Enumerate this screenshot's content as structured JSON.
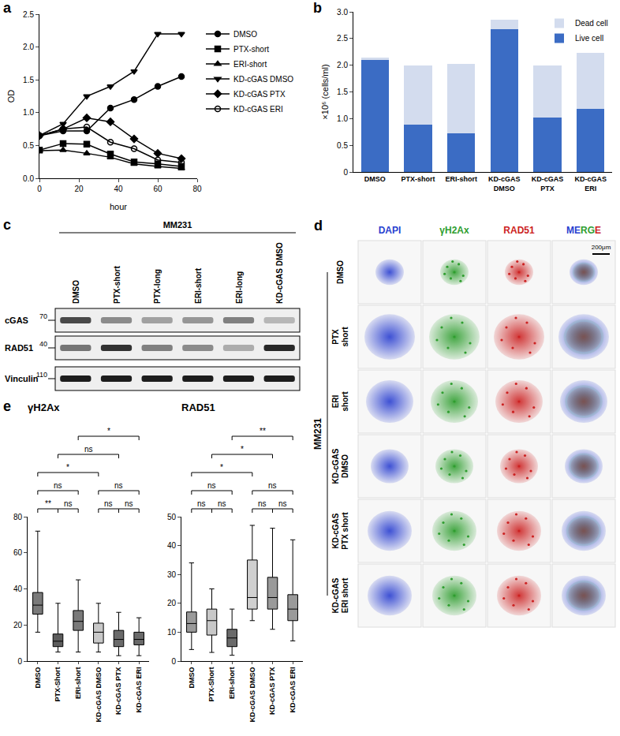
{
  "chart_data": [
    {
      "panel": "a",
      "type": "line",
      "xlabel": "hour",
      "ylabel": "OD",
      "x": [
        0,
        12,
        24,
        36,
        48,
        60,
        72
      ],
      "series": [
        {
          "name": "DMSO",
          "color": "#000000",
          "marker": "circle",
          "values": [
            0.65,
            0.72,
            0.72,
            1.07,
            1.2,
            1.4,
            1.55
          ]
        },
        {
          "name": "PTX-short",
          "color": "#000000",
          "marker": "square",
          "values": [
            0.43,
            0.53,
            0.52,
            0.37,
            0.25,
            0.22,
            0.18
          ]
        },
        {
          "name": "ERI-short",
          "color": "#000000",
          "marker": "triangle-up",
          "values": [
            0.42,
            0.43,
            0.38,
            0.32,
            0.22,
            0.18,
            0.15
          ]
        },
        {
          "name": "KD-cGAS DMSO",
          "color": "#000000",
          "marker": "triangle-down",
          "values": [
            0.65,
            0.83,
            1.25,
            1.4,
            1.63,
            2.2,
            2.2
          ]
        },
        {
          "name": "KD-cGAS PTX",
          "color": "#000000",
          "marker": "diamond",
          "values": [
            0.65,
            0.75,
            0.92,
            0.86,
            0.6,
            0.38,
            0.3
          ]
        },
        {
          "name": "KD-cGAS ERI",
          "color": "#000000",
          "marker": "circle-open",
          "values": [
            0.65,
            0.75,
            0.78,
            0.55,
            0.45,
            0.28,
            0.24
          ]
        }
      ],
      "xlim": [
        0,
        80
      ],
      "xticks": [
        0,
        20,
        40,
        60,
        80
      ],
      "ylim": [
        0,
        2.5
      ],
      "yticks": [
        {
          "value": 0,
          "label": "0.0"
        },
        0.5,
        {
          "value": 1,
          "label": "1.0"
        },
        1.5,
        {
          "value": 2,
          "label": "2.0"
        },
        2.5
      ],
      "grid": false,
      "legend": "right"
    },
    {
      "panel": "b",
      "type": "bar",
      "ylabel": "×10⁶ (cells/ml)",
      "categories": [
        "DMSO",
        "PTX-short",
        "ERI-short",
        "KD-cGAS DMSO",
        "KD-cGAS PTX",
        "KD-cGAS ERI"
      ],
      "series": [
        {
          "name": "Live cell",
          "color": "#3b6cc4",
          "values": [
            2.1,
            0.88,
            0.72,
            2.68,
            1.02,
            1.18
          ]
        },
        {
          "name": "Dead cell",
          "color": "#d3dcee",
          "values": [
            0.05,
            1.12,
            1.3,
            0.17,
            0.98,
            1.05
          ]
        }
      ],
      "stacked": true,
      "ylim": [
        0,
        3
      ],
      "yticks": [
        0,
        0.5,
        {
          "value": 1,
          "label": "1.0"
        },
        1.5,
        {
          "value": 2,
          "label": "2.0"
        },
        2.5,
        {
          "value": 3,
          "label": "3.0"
        }
      ],
      "grid": false,
      "legend": "top-right"
    },
    {
      "panel": "e",
      "type": "box",
      "title": "γH2Ax",
      "categories": [
        "DMSO",
        "PTX-Short",
        "ERI-short",
        "KD-cGAS DMSO",
        "KD-cGAS PTX",
        "KD-cGAS ERI"
      ],
      "min": [
        16,
        5,
        5,
        5,
        3,
        3
      ],
      "q1": [
        26,
        8,
        17,
        10,
        8,
        9
      ],
      "median": [
        31,
        11,
        22,
        16,
        12,
        12
      ],
      "q3": [
        38,
        15,
        28,
        21,
        17,
        16
      ],
      "max": [
        72,
        32,
        45,
        32,
        27,
        24
      ],
      "colors": [
        "#7a7a7a",
        "#5c5c5c",
        "#7a7a7a",
        "#c8c8c8",
        "#6a6a6a",
        "#6a6a6a"
      ],
      "ylim": [
        0,
        80
      ],
      "yticks": [
        0,
        20,
        40,
        60,
        80
      ],
      "grid": false,
      "comparisons": [
        {
          "groups": [
            "DMSO",
            "PTX-Short"
          ],
          "label": "**"
        },
        {
          "groups": [
            "PTX-Short",
            "ERI-short"
          ],
          "label": "ns"
        },
        {
          "groups": [
            "DMSO",
            "ERI-short"
          ],
          "label": "ns"
        },
        {
          "groups": [
            "DMSO",
            "KD-cGAS DMSO"
          ],
          "label": "*"
        },
        {
          "groups": [
            "PTX-Short",
            "KD-cGAS PTX"
          ],
          "label": "ns"
        },
        {
          "groups": [
            "ERI-short",
            "KD-cGAS ERI"
          ],
          "label": "*"
        },
        {
          "groups": [
            "KD-cGAS DMSO",
            "KD-cGAS PTX"
          ],
          "label": "ns"
        },
        {
          "groups": [
            "KD-cGAS PTX",
            "KD-cGAS ERI"
          ],
          "label": "ns"
        },
        {
          "groups": [
            "KD-cGAS DMSO",
            "KD-cGAS ERI"
          ],
          "label": "ns"
        }
      ]
    },
    {
      "type": "box",
      "title": "RAD51",
      "categories": [
        "DMSO",
        "PTX-Short",
        "ERI-short",
        "KD-cGAS DMSO",
        "KD-cGAS PTX",
        "KD-cGAS ERI"
      ],
      "min": [
        4,
        3,
        2,
        14,
        11,
        7
      ],
      "q1": [
        10,
        9,
        5,
        18,
        18,
        14
      ],
      "median": [
        13,
        14,
        8,
        22,
        22,
        18
      ],
      "q3": [
        17,
        18,
        11,
        35,
        29,
        23
      ],
      "max": [
        34,
        25,
        18,
        47,
        46,
        42
      ],
      "colors": [
        "#9a9a9a",
        "#c8c8c8",
        "#6a6a6a",
        "#d0d0d0",
        "#9a9a9a",
        "#9a9a9a"
      ],
      "ylim": [
        0,
        50
      ],
      "yticks": [
        0,
        10,
        20,
        30,
        40,
        50
      ],
      "grid": false,
      "comparisons": [
        {
          "groups": [
            "DMSO",
            "PTX-Short"
          ],
          "label": "ns"
        },
        {
          "groups": [
            "PTX-Short",
            "ERI-short"
          ],
          "label": "ns"
        },
        {
          "groups": [
            "DMSO",
            "ERI-short"
          ],
          "label": "ns"
        },
        {
          "groups": [
            "DMSO",
            "KD-cGAS DMSO"
          ],
          "label": "*"
        },
        {
          "groups": [
            "PTX-Short",
            "KD-cGAS PTX"
          ],
          "label": "*"
        },
        {
          "groups": [
            "ERI-short",
            "KD-cGAS ERI"
          ],
          "label": "**"
        },
        {
          "groups": [
            "KD-cGAS DMSO",
            "KD-cGAS PTX"
          ],
          "label": "ns"
        },
        {
          "groups": [
            "KD-cGAS PTX",
            "KD-cGAS ERI"
          ],
          "label": "ns"
        },
        {
          "groups": [
            "KD-cGAS DMSO",
            "KD-cGAS ERI"
          ],
          "label": "ns"
        }
      ]
    }
  ],
  "blot": {
    "panel": "c",
    "title": "MM231",
    "lanes": [
      "DMSO",
      "PTX-short",
      "PTX-long",
      "ERI-short",
      "ERI-long",
      "KD-cGAS DMSO"
    ],
    "rows": [
      {
        "name": "cGAS",
        "kda": 70,
        "intensity": [
          0.75,
          0.45,
          0.35,
          0.4,
          0.5,
          0.25
        ]
      },
      {
        "name": "RAD51",
        "kda": 40,
        "intensity": [
          0.55,
          0.85,
          0.5,
          0.45,
          0.3,
          0.9
        ]
      },
      {
        "name": "Vinculin",
        "kda": 110,
        "intensity": [
          0.95,
          0.95,
          0.95,
          0.95,
          0.95,
          0.95
        ]
      }
    ]
  },
  "microscopy": {
    "panel": "d",
    "cell_line": "MM231",
    "columns": [
      "DAPI",
      "γH2Ax",
      "RAD51",
      "MERGE"
    ],
    "rows": [
      "DMSO",
      "PTX short",
      "ERI short",
      "KD-cGAS DMSO",
      "KD-cGAS PTX short",
      "KD-cGAS ERI short"
    ],
    "scale_bar": "200μm"
  }
}
